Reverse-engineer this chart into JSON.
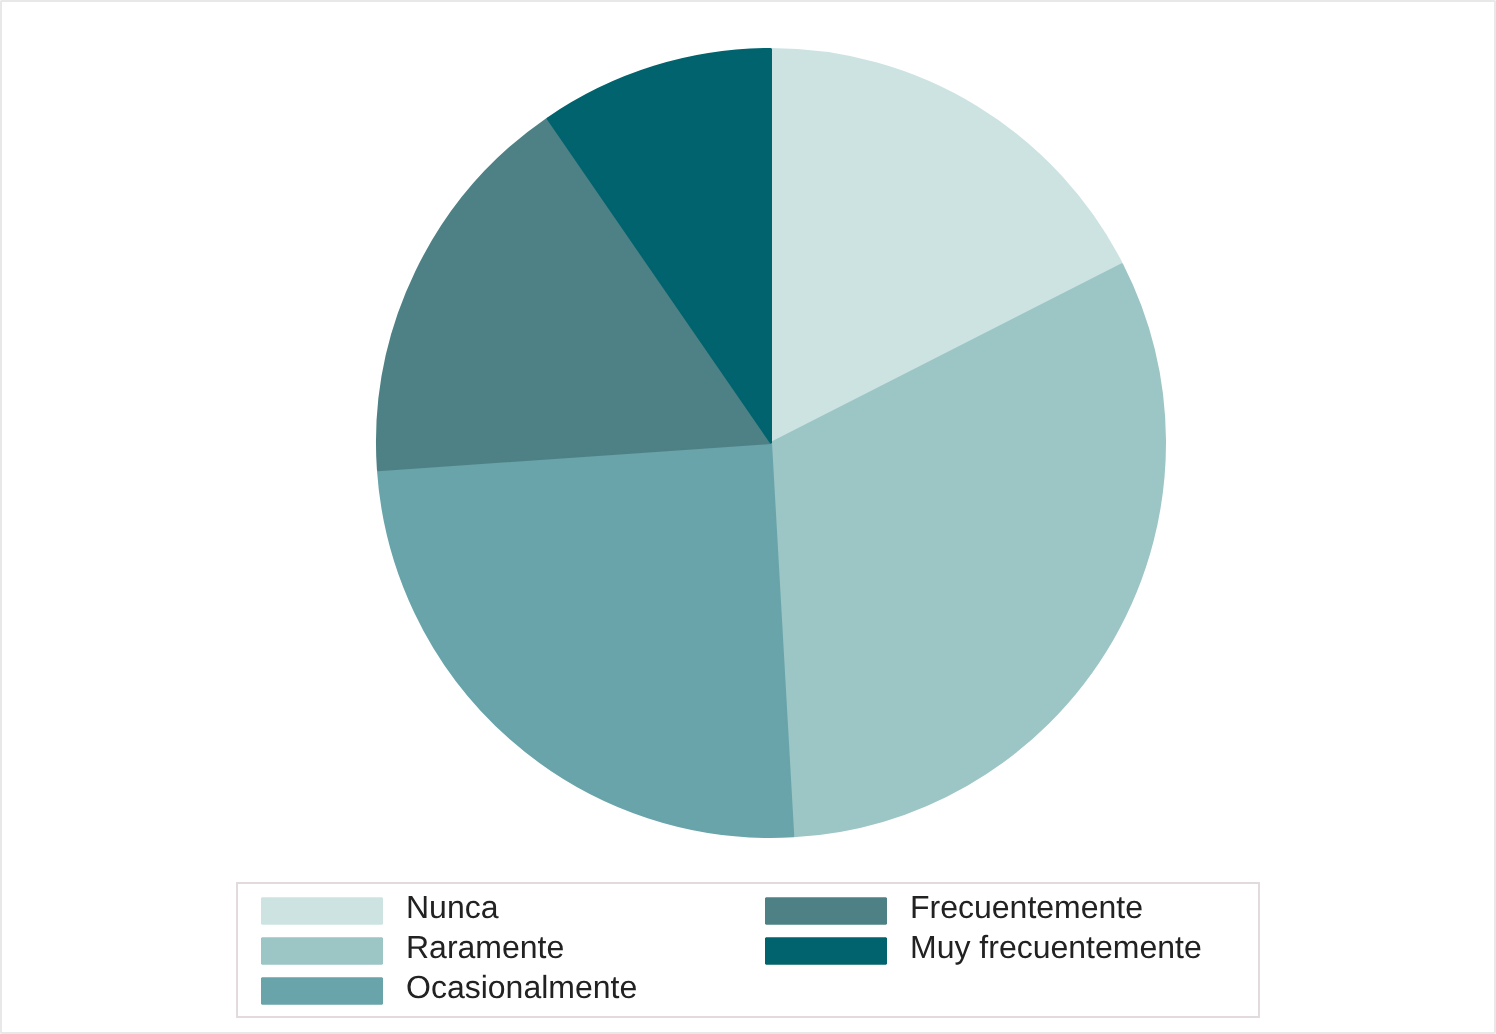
{
  "chart_data": {
    "type": "pie",
    "categories": [
      "Nunca",
      "Raramente",
      "Ocasionalmente",
      "Frecuentemente",
      "Muy frecuentemente"
    ],
    "values": [
      17.5,
      31.6,
      24.8,
      16.5,
      9.6
    ],
    "colors": [
      "#cce3e2",
      "#9cc6c5",
      "#68a4aa",
      "#4e8185",
      "#00636e"
    ],
    "legend": "bottom"
  }
}
